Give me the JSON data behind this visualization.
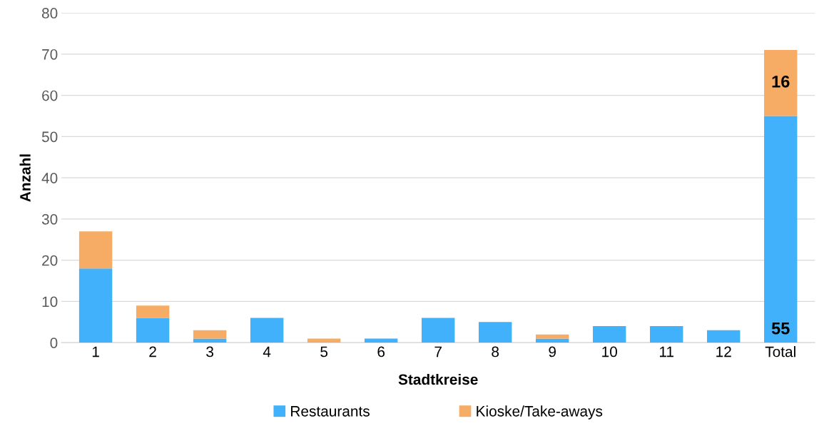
{
  "chart_data": {
    "type": "bar",
    "stacked": true,
    "xlabel": "Stadtkreise",
    "ylabel": "Anzahl",
    "categories": [
      "1",
      "2",
      "3",
      "4",
      "5",
      "6",
      "7",
      "8",
      "9",
      "10",
      "11",
      "12",
      "Total"
    ],
    "series": [
      {
        "name": "Restaurants",
        "color": "#42b1fc",
        "values": [
          18,
          6,
          1,
          6,
          0,
          1,
          6,
          5,
          1,
          4,
          4,
          3,
          55
        ],
        "value_labels": [
          null,
          null,
          null,
          null,
          null,
          null,
          null,
          null,
          null,
          null,
          null,
          null,
          "55"
        ]
      },
      {
        "name": "Kioske/Take-aways",
        "color": "#f6ac64",
        "values": [
          9,
          3,
          2,
          0,
          1,
          0,
          0,
          0,
          1,
          0,
          0,
          0,
          16
        ],
        "value_labels": [
          null,
          null,
          null,
          null,
          null,
          null,
          null,
          null,
          null,
          null,
          null,
          null,
          "16"
        ]
      }
    ],
    "ylim": [
      0,
      80
    ],
    "yticks": [
      0,
      10,
      20,
      30,
      40,
      50,
      60,
      70,
      80
    ],
    "grid": "y",
    "legend": "bottom"
  }
}
